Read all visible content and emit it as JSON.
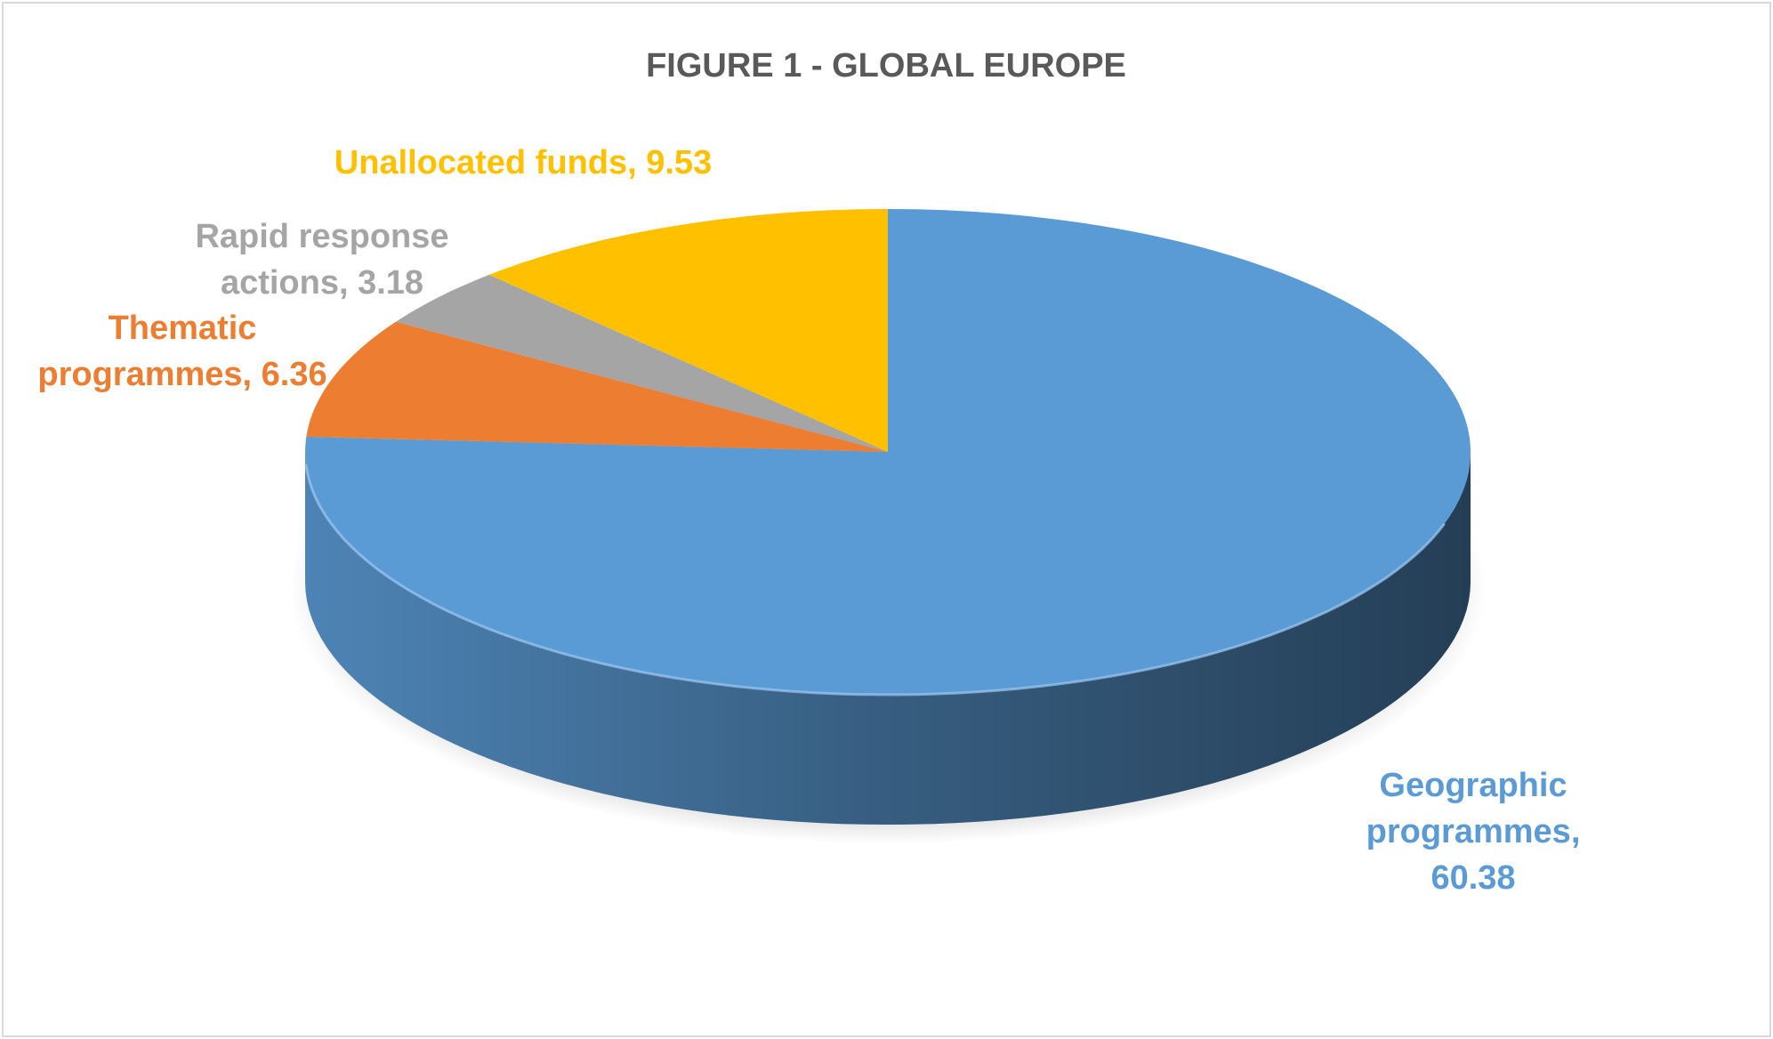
{
  "chart_data": {
    "type": "pie3d",
    "title": "FIGURE 1 - GLOBAL EUROPE",
    "values": [
      60.38,
      6.36,
      3.18,
      9.53
    ],
    "value_labels": [
      "Geographic programmes, 60.38",
      "Thematic programmes, 6.36",
      "Rapid response actions, 3.18",
      "Unallocated funds, 9.53"
    ],
    "colors": [
      "#5b9bd5",
      "#ed7d31",
      "#a5a5a5",
      "#ffc000"
    ]
  }
}
